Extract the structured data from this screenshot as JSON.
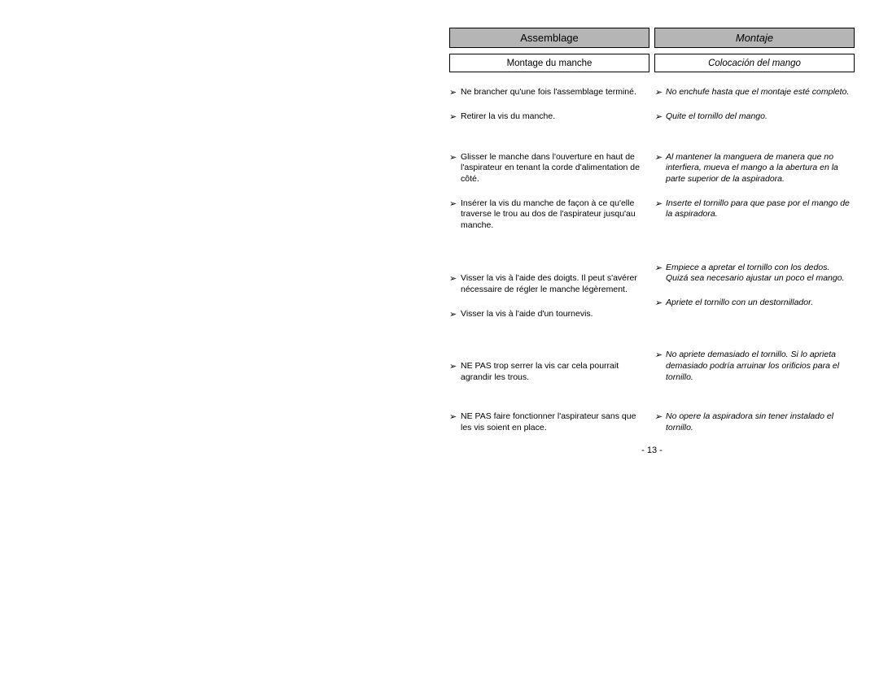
{
  "left_column": {
    "header": "Assemblage",
    "subheader": "Montage du manche",
    "items": [
      "Ne brancher qu'une fois l'assemblage terminé.",
      "Retirer la vis du manche.",
      "Glisser le manche dans l'ouverture en haut de l'aspirateur en tenant la corde d'alimentation de côté.",
      "Insérer la vis du manche de façon à ce qu'elle traverse le trou au dos de l'aspirateur jusqu'au manche.",
      "Visser la vis à l'aide des doigts.  Il peut s'avérer nécessaire de régler le manche légèrement.",
      "Visser la vis à l'aide d'un tournevis.",
      "NE PAS trop serrer la vis car cela pourrait agrandir les trous.",
      "NE PAS faire fonctionner l'aspirateur sans que les vis soient en place."
    ]
  },
  "right_column": {
    "header": "Montaje",
    "subheader": "Colocación del mango",
    "items": [
      "No enchufe hasta que el montaje esté completo.",
      "Quite el tornillo del mango.",
      "Al mantener la manguera de manera que no interfiera, mueva el mango a la abertura en la parte superior de la aspiradora.",
      "Inserte el tornillo para que pase por el mango de la aspiradora.",
      "Empiece a apretar el tornillo con los dedos.  Quizá sea necesario ajustar un poco el mango.",
      "Apriete el tornillo con un destornillador.",
      "No apriete demasiado el tornillo.  Si lo aprieta demasiado podría arruinar los orificios para el tornillo.",
      "No opere la aspiradora sin tener instalado el tornillo."
    ]
  },
  "page_number": "- 13 -",
  "bullet_char": "➢",
  "row_gaps": [
    16,
    35,
    16,
    52,
    16,
    50,
    35,
    50,
    0
  ]
}
